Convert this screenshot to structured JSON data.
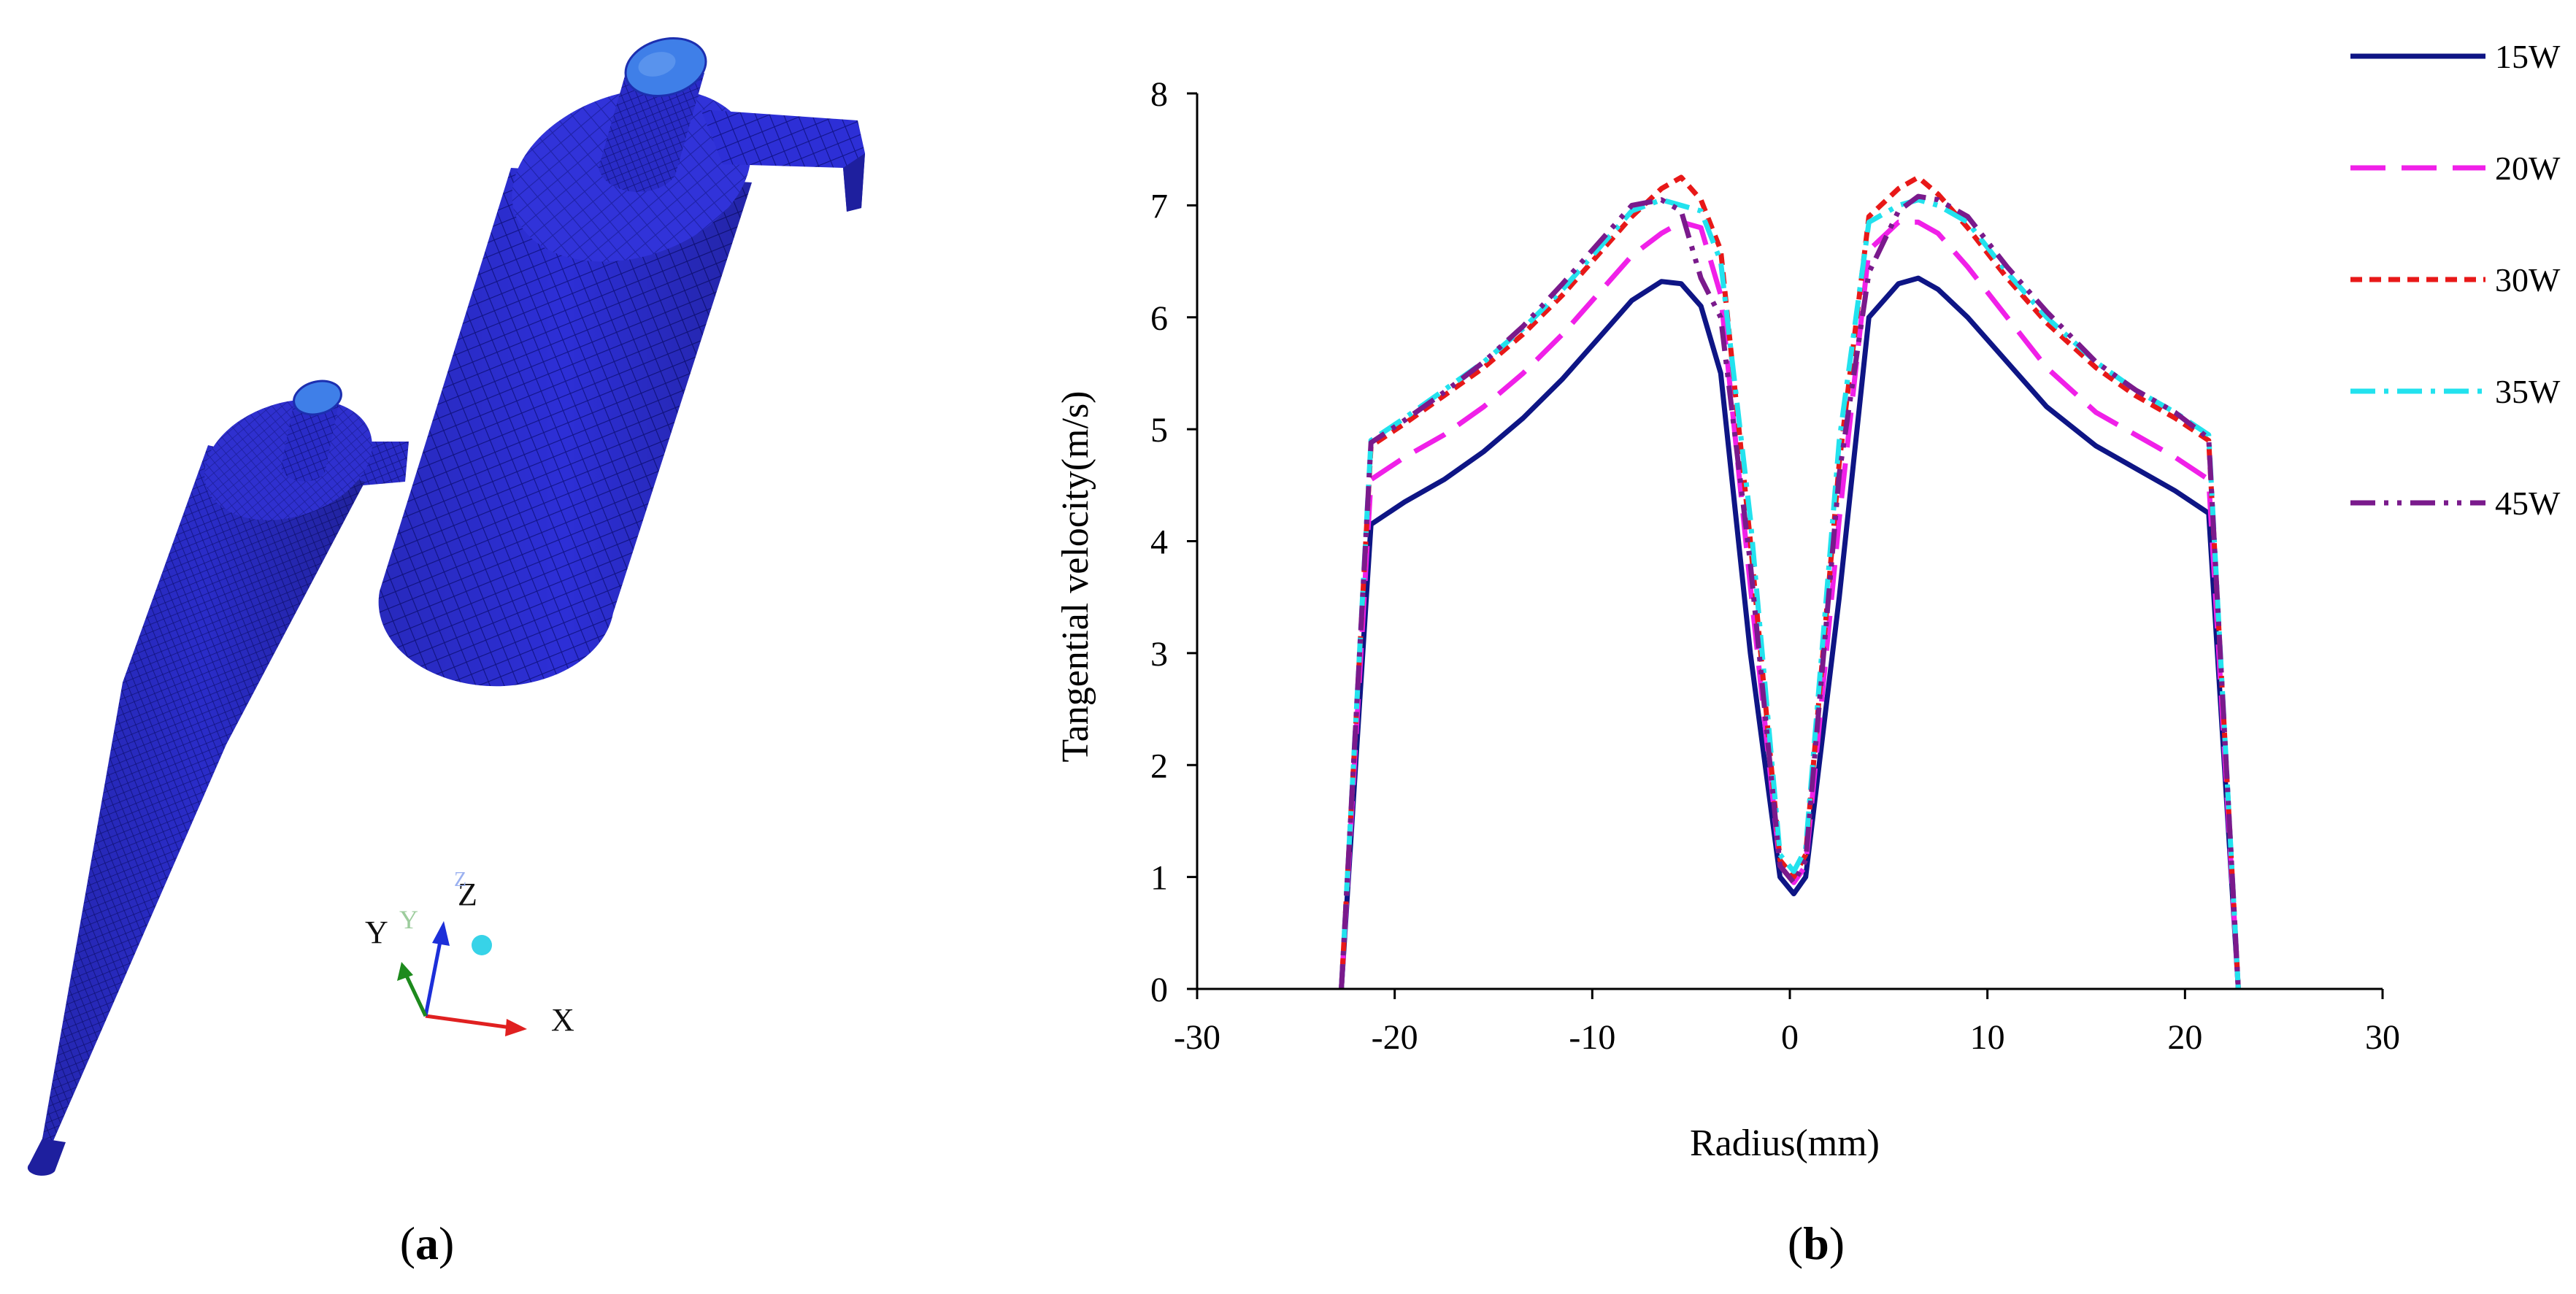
{
  "panel_a": {
    "caption_open": "(",
    "caption_letter": "a",
    "caption_close": ")",
    "axis_labels": {
      "x": "X",
      "y": "Y",
      "z": "Z",
      "y_ghost": "Y",
      "z_ghost": "Z"
    },
    "colors": {
      "mesh": "#2d2fd6",
      "mesh_dark": "#1e1f9e",
      "mesh_line": "#10127a",
      "outlet": "#3f7fe8",
      "x_axis": "#e02020",
      "y_axis": "#1d8a1d",
      "z_axis": "#1c2fd9",
      "origin": "#37d3e8"
    }
  },
  "panel_b": {
    "caption_open": "(",
    "caption_letter": "b",
    "caption_close": ")"
  },
  "chart_data": {
    "type": "line",
    "title": "",
    "xlabel": "Radius(mm)",
    "ylabel": "Tangential velocity(m/s)",
    "xlim": [
      -30,
      30
    ],
    "ylim": [
      0,
      8
    ],
    "xticks": [
      -30,
      -20,
      -10,
      0,
      10,
      20,
      30
    ],
    "yticks": [
      0,
      1,
      2,
      3,
      4,
      5,
      6,
      7,
      8
    ],
    "grid": false,
    "legend_position": "top-right-outside",
    "series": [
      {
        "name": "15W",
        "color": "#0e1585",
        "dash": "solid",
        "x": [
          -22.7,
          -21.2,
          -19.5,
          -17.5,
          -15.5,
          -13.5,
          -11.5,
          -9.5,
          -8,
          -6.5,
          -5.5,
          -4.5,
          -3.5,
          -2,
          -0.5,
          0.2,
          0.8,
          2.5,
          4,
          5.5,
          6.5,
          7.5,
          9,
          11,
          13,
          15.5,
          17.5,
          19.5,
          21.2,
          22.7
        ],
        "y": [
          0,
          4.15,
          4.35,
          4.55,
          4.8,
          5.1,
          5.45,
          5.85,
          6.15,
          6.32,
          6.3,
          6.1,
          5.5,
          3.0,
          1.0,
          0.85,
          1.0,
          3.5,
          6.0,
          6.3,
          6.35,
          6.25,
          6.0,
          5.6,
          5.2,
          4.85,
          4.65,
          4.45,
          4.25,
          0
        ]
      },
      {
        "name": "20W",
        "color": "#f020e8",
        "dash": "long-dash",
        "x": [
          -22.7,
          -21.2,
          -19.5,
          -17.5,
          -15.5,
          -13.5,
          -11.5,
          -9.5,
          -8,
          -6.5,
          -5.5,
          -4.5,
          -3.5,
          -2,
          -0.5,
          0.2,
          0.8,
          2.5,
          4,
          5.5,
          6.5,
          7.5,
          9,
          11,
          13,
          15.5,
          17.5,
          19.5,
          21.2,
          22.7
        ],
        "y": [
          0,
          4.55,
          4.75,
          4.95,
          5.2,
          5.5,
          5.85,
          6.25,
          6.55,
          6.75,
          6.85,
          6.8,
          6.2,
          3.6,
          1.1,
          0.95,
          1.1,
          4.2,
          6.6,
          6.85,
          6.85,
          6.75,
          6.45,
          6.0,
          5.55,
          5.15,
          4.95,
          4.75,
          4.55,
          0
        ]
      },
      {
        "name": "30W",
        "color": "#e81818",
        "dash": "short-dash",
        "x": [
          -22.7,
          -21.2,
          -19.5,
          -17.5,
          -15.5,
          -13.5,
          -11.5,
          -9.5,
          -8,
          -6.5,
          -5.5,
          -4.5,
          -3.5,
          -2,
          -0.5,
          0.2,
          0.8,
          2.5,
          4,
          5.5,
          6.5,
          7.5,
          9,
          11,
          13,
          15.5,
          17.5,
          19.5,
          21.2,
          22.7
        ],
        "y": [
          0,
          4.85,
          5.05,
          5.3,
          5.55,
          5.85,
          6.2,
          6.6,
          6.9,
          7.15,
          7.25,
          7.05,
          6.6,
          4.0,
          1.15,
          1.0,
          1.2,
          4.7,
          6.9,
          7.15,
          7.25,
          7.1,
          6.8,
          6.35,
          5.95,
          5.55,
          5.3,
          5.1,
          4.9,
          0
        ]
      },
      {
        "name": "35W",
        "color": "#22e2ee",
        "dash": "dash-dot",
        "x": [
          -22.7,
          -21.2,
          -19.5,
          -17.5,
          -15.5,
          -13.5,
          -11.5,
          -9.5,
          -8,
          -6.5,
          -5.5,
          -4.5,
          -3.5,
          -2,
          -0.5,
          0.2,
          0.8,
          2.5,
          4,
          5.5,
          6.5,
          7.5,
          9,
          11,
          13,
          15.5,
          17.5,
          19.5,
          21.2,
          22.7
        ],
        "y": [
          0,
          4.9,
          5.1,
          5.35,
          5.6,
          5.9,
          6.25,
          6.65,
          6.95,
          7.05,
          7.0,
          6.95,
          6.5,
          4.2,
          1.2,
          1.05,
          1.25,
          4.9,
          6.85,
          7.0,
          7.05,
          7.0,
          6.85,
          6.4,
          6.0,
          5.6,
          5.35,
          5.15,
          4.95,
          0
        ]
      },
      {
        "name": "45W",
        "color": "#7a1a8c",
        "dash": "dash-dot-dot",
        "x": [
          -22.7,
          -21.2,
          -19.5,
          -17.5,
          -15.5,
          -13.5,
          -11.5,
          -9.5,
          -8,
          -6.5,
          -5.5,
          -4.5,
          -3.5,
          -2,
          -0.5,
          0.2,
          0.8,
          2.5,
          4,
          5.5,
          6.5,
          7.5,
          9,
          11,
          13,
          15.5,
          17.5,
          19.5,
          21.2,
          22.7
        ],
        "y": [
          0,
          4.88,
          5.08,
          5.33,
          5.6,
          5.92,
          6.3,
          6.7,
          7.0,
          7.05,
          6.95,
          6.35,
          6.0,
          3.8,
          1.1,
          0.95,
          1.15,
          4.6,
          6.4,
          6.95,
          7.08,
          7.05,
          6.9,
          6.45,
          6.05,
          5.6,
          5.35,
          5.15,
          4.92,
          0
        ]
      }
    ]
  }
}
